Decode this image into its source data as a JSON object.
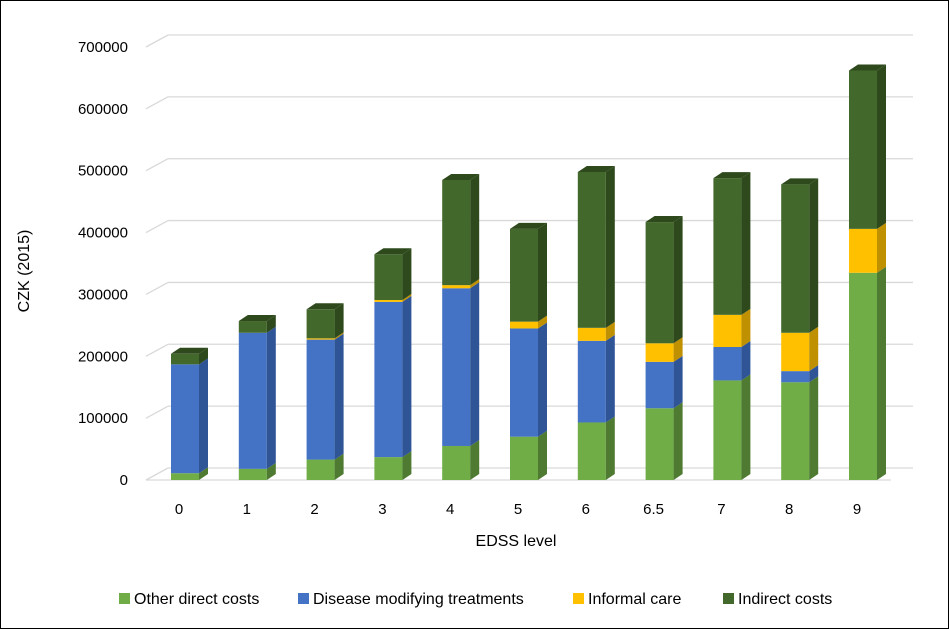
{
  "chart_data": {
    "type": "bar",
    "stacked": true,
    "three_d": true,
    "title": "",
    "xlabel": "EDSS level",
    "ylabel": "CZK (2015)",
    "ylim": [
      0,
      700000
    ],
    "yticks": [
      "0",
      "100000",
      "200000",
      "300000",
      "400000",
      "500000",
      "600000",
      "700000"
    ],
    "grid": true,
    "legend_position": "bottom",
    "categories": [
      "0",
      "1",
      "2",
      "3",
      "4",
      "5",
      "6",
      "6.5",
      "7",
      "8",
      "9"
    ],
    "series": [
      {
        "name": "Other direct costs",
        "color": "#70ad47",
        "side": "#4e7a31",
        "top": "#8cc266",
        "values": [
          11000,
          18000,
          33000,
          37000,
          55000,
          70000,
          93000,
          116000,
          161000,
          158000,
          335000
        ]
      },
      {
        "name": "Disease modifying treatments",
        "color": "#4472c4",
        "side": "#2f5597",
        "top": "#6a8fd4",
        "values": [
          176000,
          220000,
          194000,
          251000,
          255000,
          175000,
          132000,
          75000,
          54000,
          18000,
          0
        ]
      },
      {
        "name": "Informal care",
        "color": "#ffc000",
        "side": "#bf9000",
        "top": "#ffd24d",
        "values": [
          0,
          0,
          2000,
          3000,
          5000,
          11000,
          21000,
          30000,
          52000,
          62000,
          71000
        ]
      },
      {
        "name": "Indirect costs",
        "color": "#43682b",
        "side": "#2e4a1d",
        "top": "#5a8a3a",
        "values": [
          17000,
          19000,
          47000,
          74000,
          170000,
          150000,
          252000,
          196000,
          221000,
          240000,
          256000
        ]
      }
    ]
  }
}
